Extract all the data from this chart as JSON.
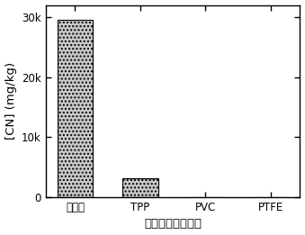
{
  "categories": [
    "无塑料",
    "TPP",
    "PVC",
    "PTFE"
  ],
  "values": [
    29500,
    3200,
    0,
    0
  ],
  "bar_color": "#c8c8c8",
  "hatch": "....",
  "ylabel": "[CN] (mg/kg)",
  "xlabel": "不同塑料成分处理",
  "ylim": [
    0,
    32000
  ],
  "yticks": [
    0,
    10000,
    20000,
    30000
  ],
  "ytick_labels": [
    "0",
    "10k",
    "20k",
    "30k"
  ],
  "background_color": "#ffffff",
  "bar_edge_color": "#000000",
  "tick_fontsize": 8.5,
  "label_fontsize": 9.5,
  "bar_width": 0.55,
  "linewidth": 0.8
}
